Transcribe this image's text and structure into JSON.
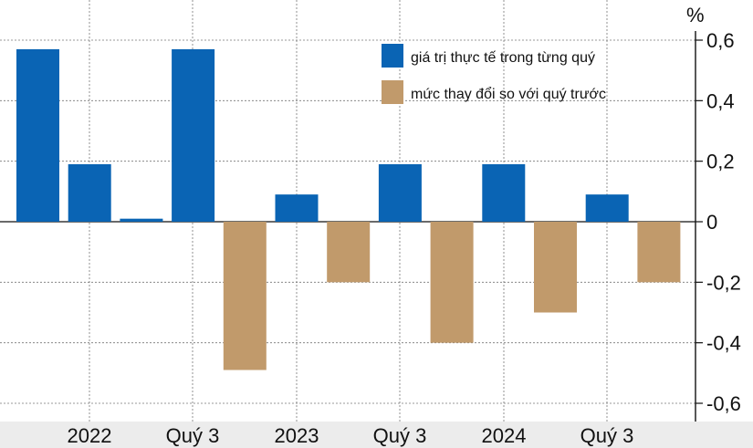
{
  "chart_data": {
    "type": "bar",
    "unit": "%",
    "ylim": [
      -0.6,
      0.6
    ],
    "yticks": [
      "0,6",
      "0,4",
      "0,2",
      "0",
      "-0,2",
      "-0,4",
      "-0,6"
    ],
    "x_labels": [
      "2022",
      "Quý 3",
      "2023",
      "Quý 3",
      "2024",
      "Quý 3"
    ],
    "series": [
      {
        "name": "giá trị thực tế trong từng quý",
        "color": "#0a64b4",
        "values": [
          0.57,
          0.19,
          0.01,
          0.57,
          0,
          0.09,
          0,
          0.19,
          0,
          0.19,
          0,
          0.09,
          0
        ]
      },
      {
        "name": "mức thay đổi so với quý trước",
        "color": "#c19a6b",
        "values": [
          0,
          0,
          0,
          0,
          -0.49,
          0,
          -0.2,
          0,
          -0.4,
          0,
          -0.3,
          0,
          -0.2
        ]
      }
    ],
    "legend_position": "top-right",
    "grid": true
  }
}
